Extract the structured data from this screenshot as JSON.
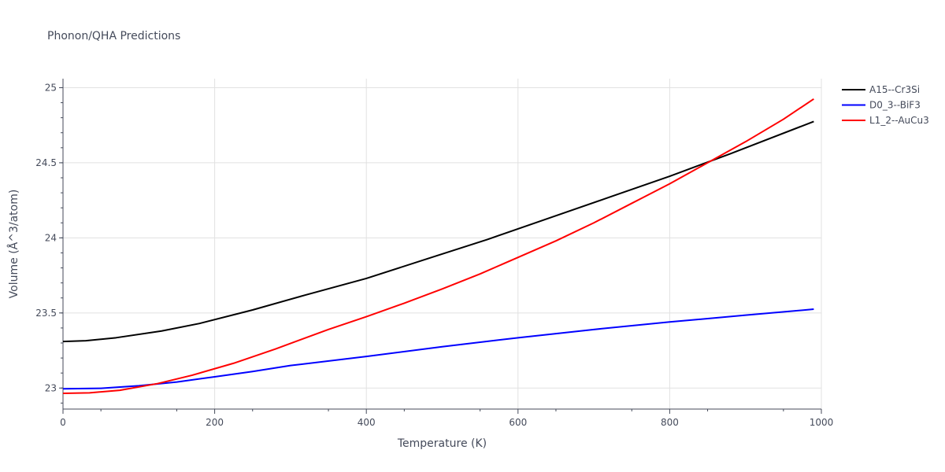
{
  "chart_data": {
    "type": "line",
    "title": "Phonon/QHA Predictions",
    "xlabel": "Temperature (K)",
    "ylabel": "Volume (Å^3/atom)",
    "xlim": [
      0,
      1000
    ],
    "ylim": [
      22.86,
      25.06
    ],
    "x_ticks": [
      0,
      200,
      400,
      600,
      800,
      1000
    ],
    "x_tick_labels": [
      "0",
      "200",
      "400",
      "600",
      "800",
      "1000"
    ],
    "y_ticks": [
      23,
      23.5,
      24,
      24.5,
      25
    ],
    "y_tick_labels": [
      "23",
      "23.5",
      "24",
      "24.5",
      "25"
    ],
    "grid": true,
    "legend_position": "top-right",
    "series": [
      {
        "name": "A15--Cr3Si",
        "color": "#000000",
        "x": [
          0,
          30,
          70,
          130,
          180,
          250,
          320,
          400,
          480,
          560,
          640,
          720,
          800,
          880,
          990
        ],
        "y": [
          23.31,
          23.315,
          23.335,
          23.38,
          23.43,
          23.52,
          23.62,
          23.73,
          23.86,
          23.99,
          24.13,
          24.27,
          24.41,
          24.56,
          24.775
        ]
      },
      {
        "name": "D0_3--BiF3",
        "color": "#0000ff",
        "x": [
          0,
          50,
          100,
          150,
          200,
          250,
          300,
          400,
          500,
          600,
          700,
          800,
          900,
          990
        ],
        "y": [
          22.995,
          22.998,
          23.015,
          23.04,
          23.075,
          23.11,
          23.15,
          23.21,
          23.275,
          23.335,
          23.39,
          23.44,
          23.485,
          23.525
        ]
      },
      {
        "name": "L1_2--AuCu3",
        "color": "#ff0000",
        "x": [
          0,
          35,
          75,
          125,
          170,
          225,
          280,
          350,
          400,
          450,
          500,
          550,
          600,
          650,
          700,
          750,
          800,
          850,
          900,
          950,
          990
        ],
        "y": [
          22.965,
          22.968,
          22.985,
          23.03,
          23.085,
          23.165,
          23.26,
          23.39,
          23.475,
          23.565,
          23.66,
          23.76,
          23.87,
          23.98,
          24.1,
          24.23,
          24.36,
          24.5,
          24.64,
          24.79,
          24.925
        ]
      }
    ]
  }
}
